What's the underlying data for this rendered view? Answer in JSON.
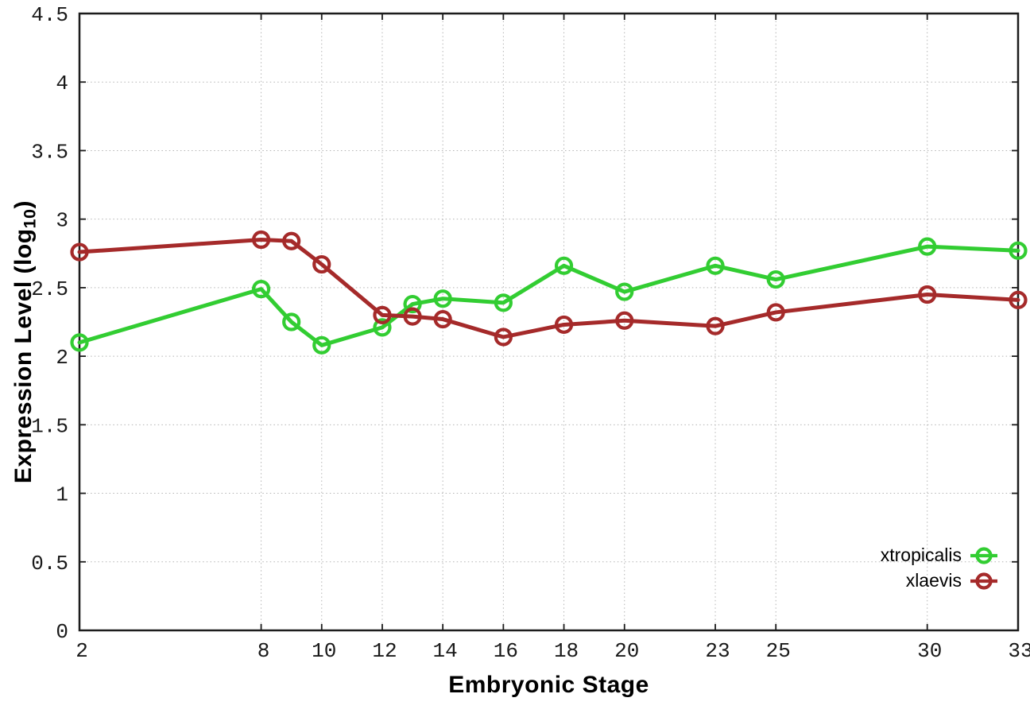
{
  "figure": {
    "background": "#ffffff",
    "axis_color": "#1c1c1c",
    "grid_color": "#b4b4b4",
    "tick_label_color": "#1a1a1a"
  },
  "chart_data": {
    "type": "line",
    "title": "",
    "xlabel": "Embryonic Stage",
    "ylabel": "Expression Level (log10)",
    "ylabel_parts": {
      "main": "Expression Level (log",
      "sub": "10",
      "close": ")"
    },
    "xlim": [
      2,
      33
    ],
    "ylim": [
      0,
      4.5
    ],
    "xticks": [
      2,
      8,
      10,
      12,
      14,
      16,
      18,
      20,
      23,
      25,
      30,
      33
    ],
    "xtick_labels": [
      "2",
      "8",
      "10",
      "12",
      "14",
      "16",
      "18",
      "20",
      "23",
      "25",
      "30",
      "33"
    ],
    "yticks": [
      0,
      0.5,
      1,
      1.5,
      2,
      2.5,
      3,
      3.5,
      4,
      4.5
    ],
    "ytick_labels": [
      "0",
      "0.5",
      "1",
      "1.5",
      "2",
      "2.5",
      "3",
      "3.5",
      "4",
      "4.5"
    ],
    "grid": true,
    "legend_position": "inside-bottom-right",
    "x": [
      2,
      8,
      9,
      10,
      12,
      13,
      14,
      16,
      18,
      20,
      23,
      25,
      30,
      33
    ],
    "series": [
      {
        "name": "xtropicalis",
        "color": "#32cd32",
        "marker": "open-circle",
        "values": [
          2.1,
          2.49,
          2.25,
          2.08,
          2.21,
          2.38,
          2.42,
          2.39,
          2.66,
          2.47,
          2.66,
          2.56,
          2.8,
          2.77
        ]
      },
      {
        "name": "xlaevis",
        "color": "#a52a2a",
        "marker": "open-circle",
        "values": [
          2.76,
          2.85,
          2.84,
          2.67,
          2.3,
          2.29,
          2.27,
          2.14,
          2.23,
          2.26,
          2.22,
          2.32,
          2.45,
          2.41
        ]
      }
    ]
  }
}
